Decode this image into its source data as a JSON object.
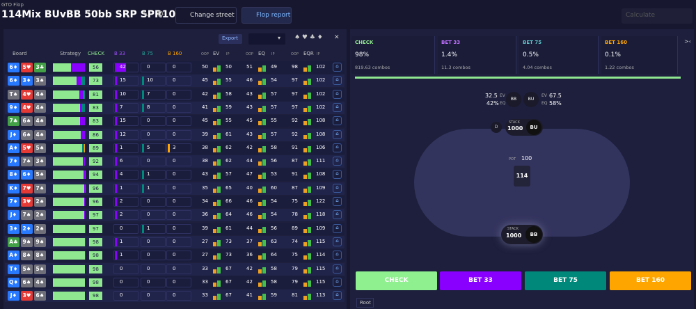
{
  "header": {
    "subtitle": "GTO Flop",
    "title": "114Mix BUvBB 50bb SRP SPR10",
    "change_street": "Change street",
    "flop_report": "Flop report",
    "calculate": "Calculate"
  },
  "table": {
    "export": "Export",
    "columns": [
      "Board",
      "Strategy",
      "CHECK",
      "B 33",
      "B 75",
      "B 160"
    ],
    "groups": [
      "EV",
      "EQ",
      "EQR"
    ],
    "oop": "OOP",
    "ip": "IP",
    "rows": [
      {
        "board": [
          "6♦",
          "5♥",
          "3♣"
        ],
        "check": 56,
        "b33": 42,
        "b75": 0,
        "b160": 0,
        "ev": [
          50,
          50
        ],
        "eq": [
          51,
          49
        ],
        "eqr": [
          98,
          102
        ]
      },
      {
        "board": [
          "6♦",
          "3♦",
          "3♠"
        ],
        "check": 73,
        "b33": 15,
        "b75": 10,
        "b160": 0,
        "ev": [
          45,
          55
        ],
        "eq": [
          46,
          54
        ],
        "eqr": [
          97,
          102
        ]
      },
      {
        "board": [
          "T♠",
          "4♥",
          "4♠"
        ],
        "check": 81,
        "b33": 10,
        "b75": 7,
        "b160": 0,
        "ev": [
          42,
          58
        ],
        "eq": [
          43,
          57
        ],
        "eqr": [
          97,
          102
        ]
      },
      {
        "board": [
          "9♦",
          "4♥",
          "4♠"
        ],
        "check": 83,
        "b33": 7,
        "b75": 8,
        "b160": 0,
        "ev": [
          41,
          59
        ],
        "eq": [
          43,
          57
        ],
        "eqr": [
          97,
          102
        ]
      },
      {
        "board": [
          "7♣",
          "6♠",
          "4♠"
        ],
        "check": 83,
        "b33": 15,
        "b75": 0,
        "b160": 0,
        "ev": [
          45,
          55
        ],
        "eq": [
          45,
          55
        ],
        "eqr": [
          92,
          108
        ]
      },
      {
        "board": [
          "J♦",
          "6♠",
          "4♠"
        ],
        "check": 86,
        "b33": 12,
        "b75": 0,
        "b160": 0,
        "ev": [
          39,
          61
        ],
        "eq": [
          43,
          57
        ],
        "eqr": [
          92,
          108
        ]
      },
      {
        "board": [
          "A♦",
          "5♥",
          "5♠"
        ],
        "check": 89,
        "b33": 1,
        "b75": 5,
        "b160": 3,
        "ev": [
          38,
          62
        ],
        "eq": [
          42,
          58
        ],
        "eqr": [
          91,
          106
        ]
      },
      {
        "board": [
          "7♦",
          "7♠",
          "3♠"
        ],
        "check": 92,
        "b33": 6,
        "b75": 0,
        "b160": 0,
        "ev": [
          38,
          62
        ],
        "eq": [
          44,
          56
        ],
        "eqr": [
          87,
          111
        ]
      },
      {
        "board": [
          "8♦",
          "6♦",
          "5♠"
        ],
        "check": 94,
        "b33": 4,
        "b75": 1,
        "b160": 0,
        "ev": [
          43,
          57
        ],
        "eq": [
          47,
          53
        ],
        "eqr": [
          91,
          108
        ]
      },
      {
        "board": [
          "K♦",
          "7♥",
          "7♠"
        ],
        "check": 96,
        "b33": 1,
        "b75": 1,
        "b160": 0,
        "ev": [
          35,
          65
        ],
        "eq": [
          40,
          60
        ],
        "eqr": [
          87,
          109
        ]
      },
      {
        "board": [
          "7♦",
          "3♥",
          "2♠"
        ],
        "check": 96,
        "b33": 2,
        "b75": 0,
        "b160": 0,
        "ev": [
          34,
          66
        ],
        "eq": [
          46,
          54
        ],
        "eqr": [
          75,
          122
        ]
      },
      {
        "board": [
          "J♦",
          "7♠",
          "2♠"
        ],
        "check": 97,
        "b33": 2,
        "b75": 0,
        "b160": 0,
        "ev": [
          36,
          64
        ],
        "eq": [
          46,
          54
        ],
        "eqr": [
          78,
          118
        ]
      },
      {
        "board": [
          "3♦",
          "2♦",
          "2♠"
        ],
        "check": 97,
        "b33": 0,
        "b75": 1,
        "b160": 0,
        "ev": [
          39,
          61
        ],
        "eq": [
          44,
          56
        ],
        "eqr": [
          89,
          109
        ]
      },
      {
        "board": [
          "A♣",
          "9♠",
          "9♠"
        ],
        "check": 98,
        "b33": 1,
        "b75": 0,
        "b160": 0,
        "ev": [
          27,
          73
        ],
        "eq": [
          37,
          63
        ],
        "eqr": [
          74,
          115
        ]
      },
      {
        "board": [
          "A♦",
          "8♠",
          "8♠"
        ],
        "check": 98,
        "b33": 1,
        "b75": 0,
        "b160": 0,
        "ev": [
          27,
          73
        ],
        "eq": [
          36,
          64
        ],
        "eqr": [
          75,
          114
        ]
      },
      {
        "board": [
          "T♦",
          "5♠",
          "5♠"
        ],
        "check": 98,
        "b33": 0,
        "b75": 0,
        "b160": 0,
        "ev": [
          33,
          67
        ],
        "eq": [
          42,
          58
        ],
        "eqr": [
          79,
          115
        ]
      },
      {
        "board": [
          "Q♦",
          "6♠",
          "4♠"
        ],
        "check": 98,
        "b33": 0,
        "b75": 0,
        "b160": 0,
        "ev": [
          33,
          67
        ],
        "eq": [
          42,
          58
        ],
        "eqr": [
          79,
          115
        ]
      },
      {
        "board": [
          "J♦",
          "3♥",
          "6♠"
        ],
        "check": 98,
        "b33": 0,
        "b75": 0,
        "b160": 0,
        "ev": [
          33,
          67
        ],
        "eq": [
          41,
          59
        ],
        "eqr": [
          81,
          113
        ]
      }
    ]
  },
  "summary": [
    {
      "action": "CHECK",
      "pct": "98%",
      "combos": "819.63 combos"
    },
    {
      "action": "BET 33",
      "pct": "1.4%",
      "combos": "11.3 combos"
    },
    {
      "action": "BET 75",
      "pct": "0.5%",
      "combos": "4.04 combos"
    },
    {
      "action": "BET 160",
      "pct": "0.1%",
      "combos": "1.22 combos"
    }
  ],
  "poker_table": {
    "bb_ev": "32.5",
    "bb_eq": "42%",
    "bu_ev": "67.5",
    "bu_eq": "58%",
    "ev": "EV",
    "eq": "EQ",
    "bb": "BB",
    "bu": "BU",
    "dealer": "D",
    "stack": "STACK",
    "bu_stack": "1000",
    "bb_stack": "1000",
    "pot": "POT",
    "pot_value": "100",
    "board": "114"
  },
  "actions": [
    "CHECK",
    "BET 33",
    "BET 75",
    "BET 160"
  ],
  "footer": "Root"
}
